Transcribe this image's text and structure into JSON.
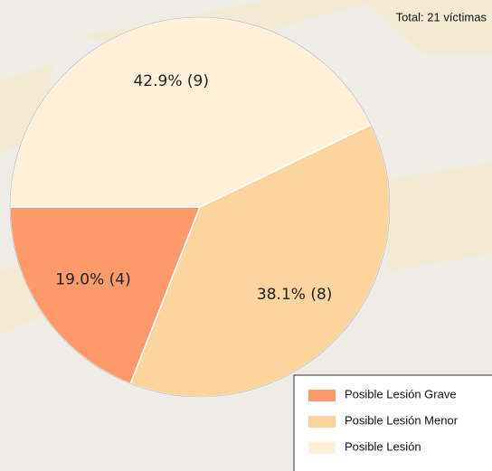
{
  "chart_data": {
    "type": "pie",
    "title": "Total: 21 víctimas",
    "categories": [
      "Posible Lesión Grave",
      "Posible Lesión Menor",
      "Posible Lesión"
    ],
    "values": [
      4,
      8,
      9
    ],
    "value_labels": [
      "19.0%  (4)",
      "38.1%  (8)",
      "42.9%  (9)"
    ],
    "colors": [
      "#fc9a6c",
      "#fdd49e",
      "#fef0d9"
    ]
  }
}
